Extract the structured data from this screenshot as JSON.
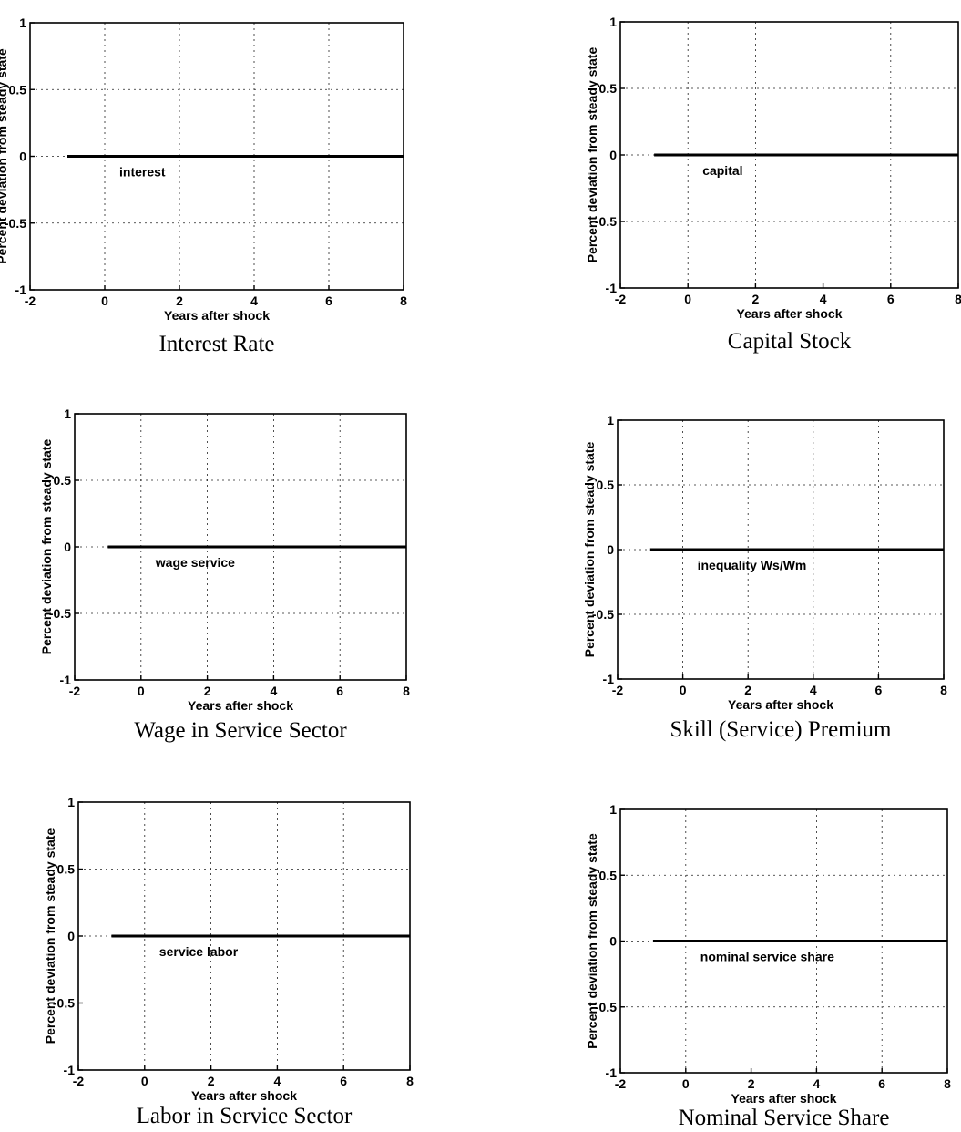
{
  "chart_data": [
    {
      "type": "line",
      "caption": "Interest Rate",
      "xlabel": "Years after shock",
      "ylabel": "Percent deviation from steady state",
      "xlim": [
        -2,
        8
      ],
      "ylim": [
        -1,
        1
      ],
      "xticks": [
        "-2",
        "0",
        "2",
        "4",
        "6",
        "8"
      ],
      "yticks": [
        "1",
        "0.5",
        "0",
        "-0.5",
        "-1"
      ],
      "grid": true,
      "series": [
        {
          "name": "interest",
          "x": [
            -1,
            8
          ],
          "y": [
            0,
            0
          ]
        }
      ]
    },
    {
      "type": "line",
      "caption": "Capital Stock",
      "xlabel": "Years after shock",
      "ylabel": "Percent deviation from steady state",
      "xlim": [
        -2,
        8
      ],
      "ylim": [
        -1,
        1
      ],
      "xticks": [
        "-2",
        "0",
        "2",
        "4",
        "6",
        "8"
      ],
      "yticks": [
        "1",
        "0.5",
        "0",
        "-0.5",
        "-1"
      ],
      "grid": true,
      "series": [
        {
          "name": "capital",
          "x": [
            -1,
            8
          ],
          "y": [
            0,
            0
          ]
        }
      ]
    },
    {
      "type": "line",
      "caption": "Wage in Service Sector",
      "xlabel": "Years after shock",
      "ylabel": "Percent deviation from steady state",
      "xlim": [
        -2,
        8
      ],
      "ylim": [
        -1,
        1
      ],
      "xticks": [
        "-2",
        "0",
        "2",
        "4",
        "6",
        "8"
      ],
      "yticks": [
        "1",
        "0.5",
        "0",
        "-0.5",
        "-1"
      ],
      "grid": true,
      "series": [
        {
          "name": "wage service",
          "x": [
            -1,
            8
          ],
          "y": [
            0,
            0
          ]
        }
      ]
    },
    {
      "type": "line",
      "caption": "Skill (Service) Premium",
      "xlabel": "Years after shock",
      "ylabel": "Percent deviation from steady state",
      "xlim": [
        -2,
        8
      ],
      "ylim": [
        -1,
        1
      ],
      "xticks": [
        "-2",
        "0",
        "2",
        "4",
        "6",
        "8"
      ],
      "yticks": [
        "1",
        "0.5",
        "0",
        "-0.5",
        "-1"
      ],
      "grid": true,
      "series": [
        {
          "name": "inequality Ws/Wm",
          "x": [
            -1,
            8
          ],
          "y": [
            0,
            0
          ]
        }
      ]
    },
    {
      "type": "line",
      "caption": "Labor in Service Sector",
      "xlabel": "Years after shock",
      "ylabel": "Percent deviation from steady state",
      "xlim": [
        -2,
        8
      ],
      "ylim": [
        -1,
        1
      ],
      "xticks": [
        "-2",
        "0",
        "2",
        "4",
        "6",
        "8"
      ],
      "yticks": [
        "1",
        "0.5",
        "0",
        "-0.5",
        "-1"
      ],
      "grid": true,
      "series": [
        {
          "name": "service labor",
          "x": [
            -1,
            8
          ],
          "y": [
            0,
            0
          ]
        }
      ]
    },
    {
      "type": "line",
      "caption": "Nominal Service Share",
      "xlabel": "Years after shock",
      "ylabel": "Percent deviation from steady state",
      "xlim": [
        -2,
        8
      ],
      "ylim": [
        -1,
        1
      ],
      "xticks": [
        "-2",
        "0",
        "2",
        "4",
        "6",
        "8"
      ],
      "yticks": [
        "1",
        "0.5",
        "0",
        "-0.5",
        "-1"
      ],
      "grid": true,
      "series": [
        {
          "name": "nominal service share",
          "x": [
            -1,
            8
          ],
          "y": [
            0,
            0
          ]
        }
      ]
    }
  ]
}
